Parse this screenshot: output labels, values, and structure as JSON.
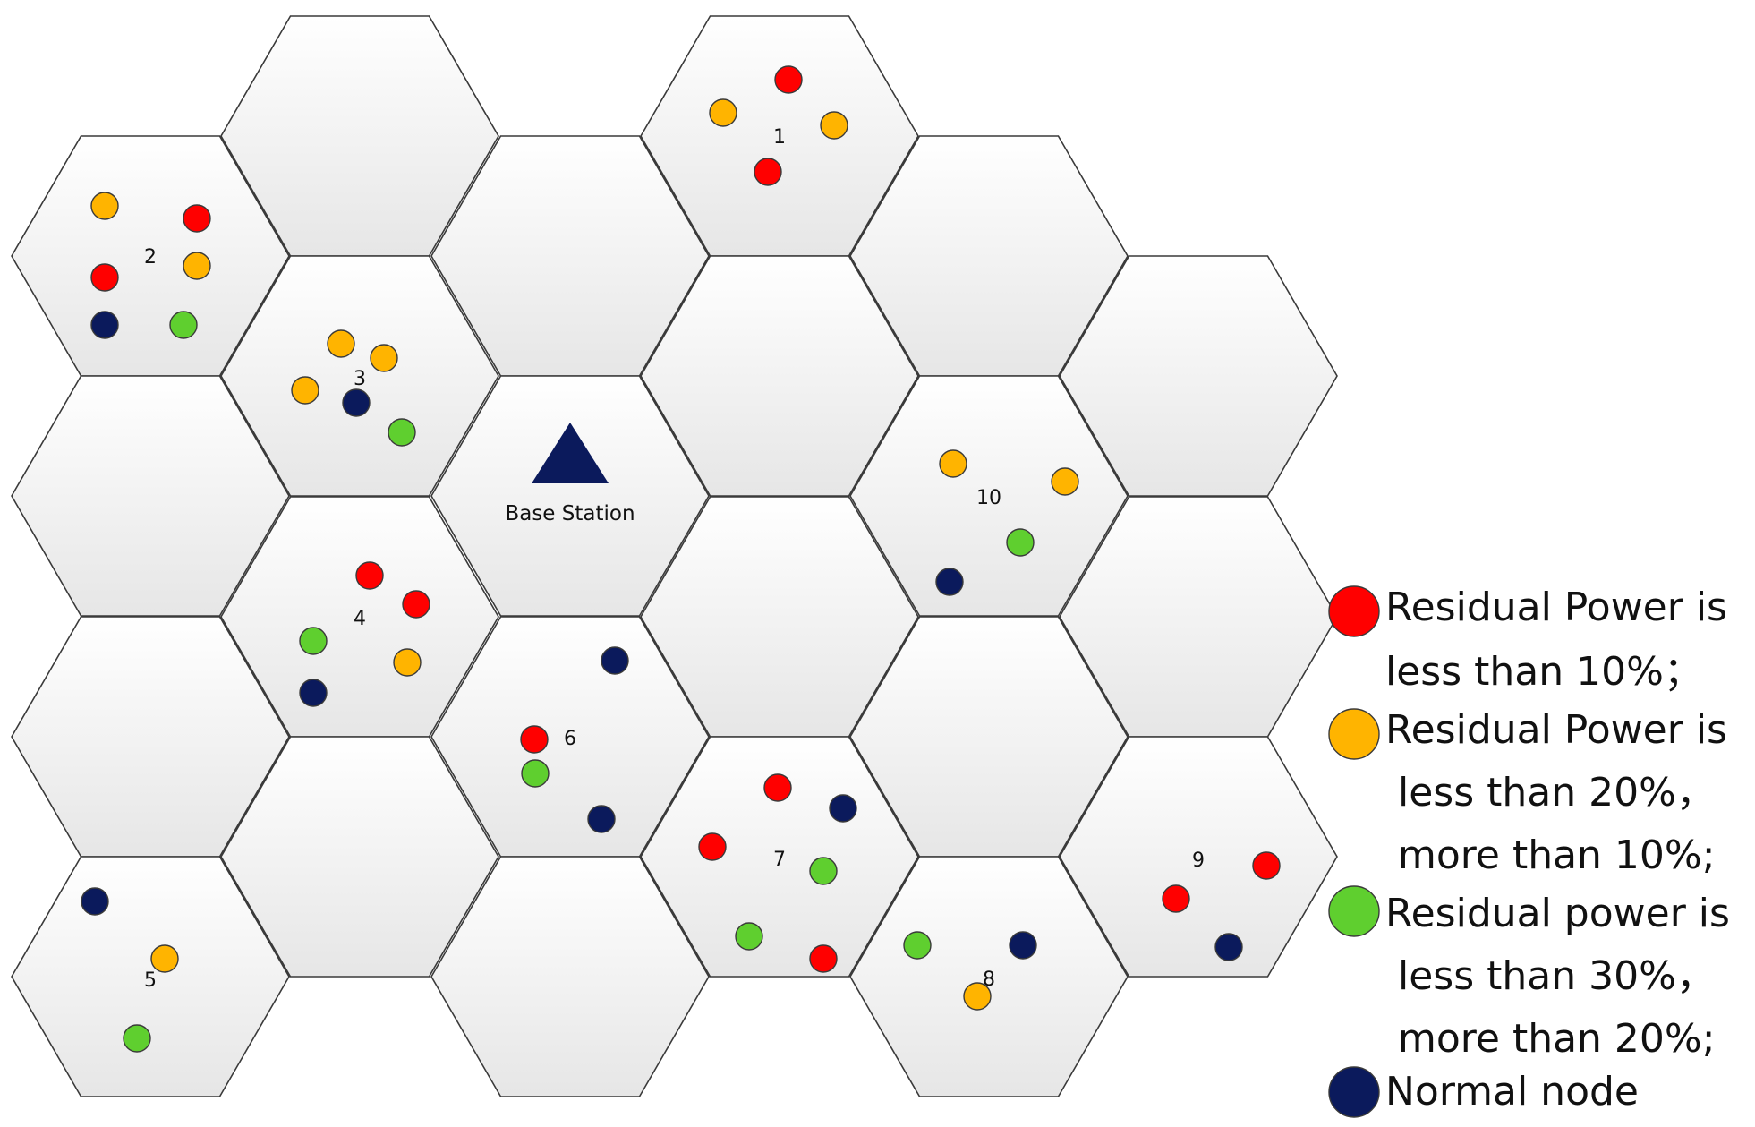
{
  "colors": {
    "red": "#ff0000",
    "orange": "#ffb400",
    "green": "#5fcf2f",
    "navy": "#0b1a5c",
    "cell_fill_top": "#ffffff",
    "cell_fill_bottom": "#e6e6e6",
    "base_station": "#0b1a5c"
  },
  "base_station": {
    "label": "Base Station",
    "icon": "triangle-icon"
  },
  "clusters": [
    {
      "label": "1",
      "nodes": [
        "red",
        "orange",
        "orange",
        "red"
      ]
    },
    {
      "label": "2",
      "nodes": [
        "orange",
        "red",
        "red",
        "orange",
        "navy",
        "green"
      ]
    },
    {
      "label": "3",
      "nodes": [
        "orange",
        "orange",
        "orange",
        "navy",
        "green"
      ]
    },
    {
      "label": "4",
      "nodes": [
        "red",
        "red",
        "green",
        "orange",
        "navy"
      ]
    },
    {
      "label": "5",
      "nodes": [
        "navy",
        "orange",
        "green"
      ]
    },
    {
      "label": "6",
      "nodes": [
        "navy",
        "red",
        "green",
        "navy"
      ]
    },
    {
      "label": "7",
      "nodes": [
        "red",
        "navy",
        "red",
        "green",
        "green",
        "red"
      ]
    },
    {
      "label": "8",
      "nodes": [
        "green",
        "navy",
        "orange"
      ]
    },
    {
      "label": "9",
      "nodes": [
        "red",
        "red",
        "navy"
      ]
    },
    {
      "label": "10",
      "nodes": [
        "orange",
        "orange",
        "green",
        "navy"
      ]
    }
  ],
  "legend": [
    {
      "color": "red",
      "lines": [
        "Residual Power is",
        "less than 10%；"
      ]
    },
    {
      "color": "orange",
      "lines": [
        "Residual Power is",
        " less than 20%，",
        " more than 10%;"
      ]
    },
    {
      "color": "green",
      "lines": [
        "Residual power is",
        " less than 30%，",
        " more than 20%;"
      ]
    },
    {
      "color": "navy",
      "lines": [
        "Normal node"
      ]
    }
  ]
}
